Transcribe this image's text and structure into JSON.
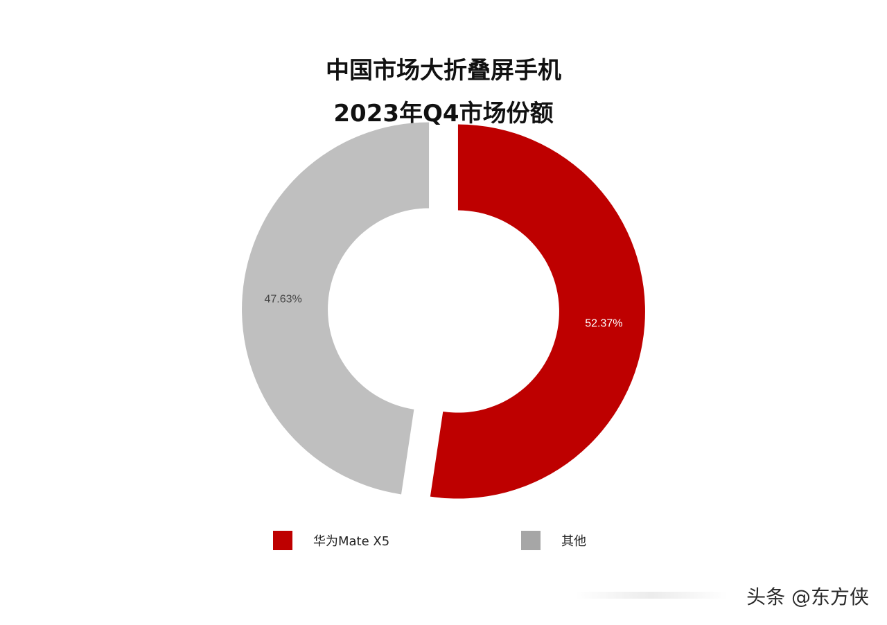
{
  "chart_data": {
    "type": "pie",
    "title_lines": [
      "中国市场大折叠屏手机",
      "2023年Q4市场份额"
    ],
    "slices": [
      {
        "name": "华为Mate X5",
        "value": 52.37,
        "label": "52.37%",
        "color": "#BE0000",
        "label_color": "#ffffff"
      },
      {
        "name": "其他",
        "value": 47.63,
        "label": "47.63%",
        "color": "#BFBFBF",
        "label_color": "#444444"
      }
    ],
    "legend": [
      {
        "name": "华为Mate X5",
        "color": "#BE0000"
      },
      {
        "name": "其他",
        "color": "#A6A6A6"
      }
    ],
    "legend_placement": "bottom",
    "donut": true
  },
  "watermark": "头条 @东方侠"
}
